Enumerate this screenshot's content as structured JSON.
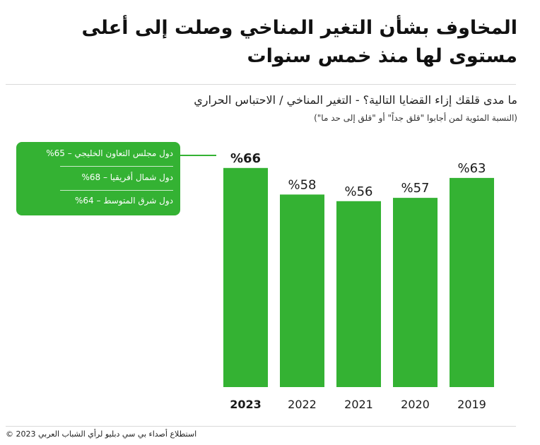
{
  "header": {
    "title_line1": "المخاوف بشأن التغير المناخي وصلت إلى أعلى",
    "title_line2": "مستوى لها منذ خمس سنوات",
    "subtitle": "ما مدى قلقك إزاء القضايا التالية؟ - التغير المناخي / الاحتباس الحراري",
    "note": "(النسبة المئوية لمن أجابوا \"قلق جداً\" أو \"قلق إلى حد ما\")"
  },
  "breakdown": {
    "items": [
      "دول مجلس التعاون الخليجي – 65%",
      "دول شمال أفريقيا – 68%",
      "دول شرق المتوسط – 64%"
    ]
  },
  "footer": {
    "copyright": "© استطلاع أصداء بي سي دبليو لرأي الشباب العربي 2023"
  },
  "colors": {
    "bar": "#34b233",
    "text": "#1a1a1a"
  },
  "chart_data": {
    "type": "bar",
    "categories": [
      "2023",
      "2022",
      "2021",
      "2020",
      "2019"
    ],
    "values": [
      66,
      58,
      56,
      57,
      63
    ],
    "value_labels": [
      "%66",
      "%58",
      "%56",
      "%57",
      "%63"
    ],
    "highlighted": "2023",
    "title": "",
    "xlabel": "",
    "ylabel": "",
    "ylim": [
      0,
      70
    ],
    "grid": false
  }
}
